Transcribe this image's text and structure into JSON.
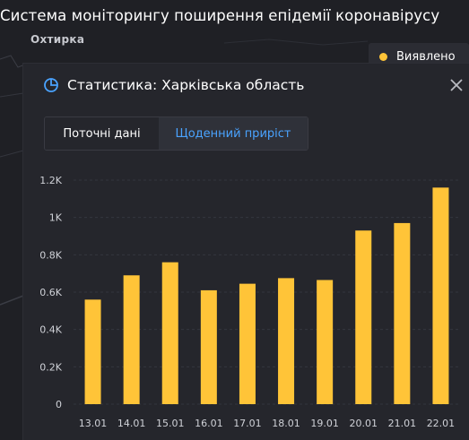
{
  "app": {
    "title": "Система моніторингу поширення епідемії коронавірусу"
  },
  "map": {
    "place_label": "Охтирка"
  },
  "legend": {
    "label": "Виявлено",
    "color": "#ffc438"
  },
  "panel": {
    "title": "Статистика: Харківська область",
    "icon": "pie-chart-icon",
    "close_icon": "close-icon",
    "tabs": [
      {
        "label": "Поточні дані",
        "active": false
      },
      {
        "label": "Щоденний приріст",
        "active": true
      }
    ]
  },
  "colors": {
    "accent": "#4aa3ff",
    "bar": "#ffc438",
    "panel_bg": "#25262c",
    "page_bg": "#1f2025"
  },
  "chart_data": {
    "type": "bar",
    "categories": [
      "13.01",
      "14.01",
      "15.01",
      "16.01",
      "17.01",
      "18.01",
      "19.01",
      "20.01",
      "21.01",
      "22.01"
    ],
    "values": [
      560,
      690,
      760,
      610,
      645,
      675,
      665,
      930,
      970,
      1160
    ],
    "ylim": [
      0,
      1200
    ],
    "yticks": [
      {
        "value": 0,
        "label": "0"
      },
      {
        "value": 200,
        "label": "0.2K"
      },
      {
        "value": 400,
        "label": "0.4K"
      },
      {
        "value": 600,
        "label": "0.6K"
      },
      {
        "value": 800,
        "label": "0.8K"
      },
      {
        "value": 1000,
        "label": "1K"
      },
      {
        "value": 1200,
        "label": "1.2K"
      }
    ],
    "grid": true,
    "title": "",
    "xlabel": "",
    "ylabel": ""
  }
}
